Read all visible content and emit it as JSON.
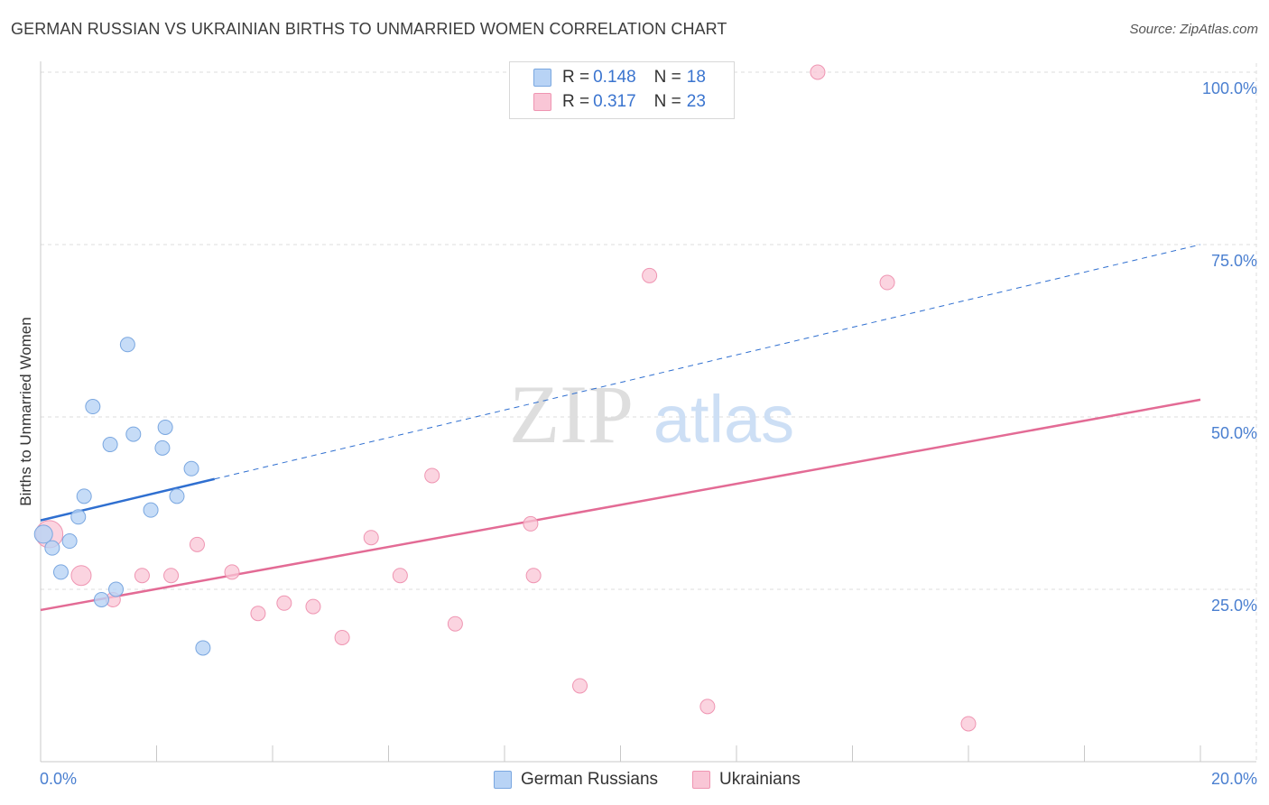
{
  "title": "GERMAN RUSSIAN VS UKRAINIAN BIRTHS TO UNMARRIED WOMEN CORRELATION CHART",
  "source": "Source: ZipAtlas.com",
  "watermark": {
    "zip": "ZIP",
    "atlas": "atlas"
  },
  "legend_top": {
    "rows": [
      {
        "r_label": "R = ",
        "r_value": "0.148",
        "n_label": "N = ",
        "n_value": "18"
      },
      {
        "r_label": "R = ",
        "r_value": "0.317",
        "n_label": "N = ",
        "n_value": "23"
      }
    ]
  },
  "legend_bottom": {
    "german_russians": "German Russians",
    "ukrainians": "Ukrainians"
  },
  "colors": {
    "blue_fill": "#b8d3f5",
    "blue_stroke": "#7aa7e0",
    "blue_line": "#2f6fd0",
    "pink_fill": "#f9c6d6",
    "pink_stroke": "#ef95b2",
    "pink_line": "#e36b95",
    "tick_text": "#4a7fd0",
    "grid": "#dcdcdc"
  },
  "chart_data": {
    "type": "scatter",
    "title": "GERMAN RUSSIAN VS UKRAINIAN BIRTHS TO UNMARRIED WOMEN CORRELATION CHART",
    "xlabel": "",
    "ylabel": "Births to Unmarried Women",
    "xlim": [
      0,
      20
    ],
    "ylim": [
      0,
      102
    ],
    "x_tick_labels": {
      "min": "0.0%",
      "max": "20.0%"
    },
    "y_ticks": [
      {
        "value": 25,
        "label": "25.0%"
      },
      {
        "value": 50,
        "label": "50.0%"
      },
      {
        "value": 75,
        "label": "75.0%"
      },
      {
        "value": 100,
        "label": "100.0%"
      }
    ],
    "series": [
      {
        "name": "German Russians",
        "r": 0.148,
        "n": 18,
        "points": [
          {
            "x": 0.05,
            "y": 33.0
          },
          {
            "x": 0.2,
            "y": 31.0
          },
          {
            "x": 0.35,
            "y": 27.5
          },
          {
            "x": 0.5,
            "y": 32.0
          },
          {
            "x": 0.65,
            "y": 35.5
          },
          {
            "x": 0.75,
            "y": 38.5
          },
          {
            "x": 0.9,
            "y": 51.5
          },
          {
            "x": 1.05,
            "y": 23.5
          },
          {
            "x": 1.2,
            "y": 46.0
          },
          {
            "x": 1.3,
            "y": 25.0
          },
          {
            "x": 1.5,
            "y": 60.5
          },
          {
            "x": 1.6,
            "y": 47.5
          },
          {
            "x": 1.9,
            "y": 36.5
          },
          {
            "x": 2.1,
            "y": 45.5
          },
          {
            "x": 2.15,
            "y": 48.5
          },
          {
            "x": 2.35,
            "y": 38.5
          },
          {
            "x": 2.6,
            "y": 42.5
          },
          {
            "x": 2.8,
            "y": 16.5
          }
        ],
        "trend": {
          "x0": 0,
          "y0": 35.0,
          "x1": 3.0,
          "y1": 41.0,
          "x_extend": 20,
          "y_extend": 75.0
        }
      },
      {
        "name": "Ukrainians",
        "r": 0.317,
        "n": 23,
        "points": [
          {
            "x": 0.15,
            "y": 33.0
          },
          {
            "x": 0.7,
            "y": 27.0
          },
          {
            "x": 1.25,
            "y": 23.5
          },
          {
            "x": 1.75,
            "y": 27.0
          },
          {
            "x": 2.25,
            "y": 27.0
          },
          {
            "x": 2.7,
            "y": 31.5
          },
          {
            "x": 3.3,
            "y": 27.5
          },
          {
            "x": 3.75,
            "y": 21.5
          },
          {
            "x": 4.2,
            "y": 23.0
          },
          {
            "x": 4.7,
            "y": 22.5
          },
          {
            "x": 5.2,
            "y": 18.0
          },
          {
            "x": 5.7,
            "y": 32.5
          },
          {
            "x": 6.2,
            "y": 27.0
          },
          {
            "x": 6.75,
            "y": 41.5
          },
          {
            "x": 7.15,
            "y": 20.0
          },
          {
            "x": 8.45,
            "y": 34.5
          },
          {
            "x": 8.5,
            "y": 27.0
          },
          {
            "x": 9.3,
            "y": 11.0
          },
          {
            "x": 10.5,
            "y": 70.5
          },
          {
            "x": 11.5,
            "y": 8.0
          },
          {
            "x": 13.4,
            "y": 100.0
          },
          {
            "x": 14.6,
            "y": 69.5
          },
          {
            "x": 16.0,
            "y": 5.5
          }
        ],
        "trend": {
          "x0": 0,
          "y0": 22.0,
          "x1": 20,
          "y1": 52.5
        }
      }
    ]
  }
}
